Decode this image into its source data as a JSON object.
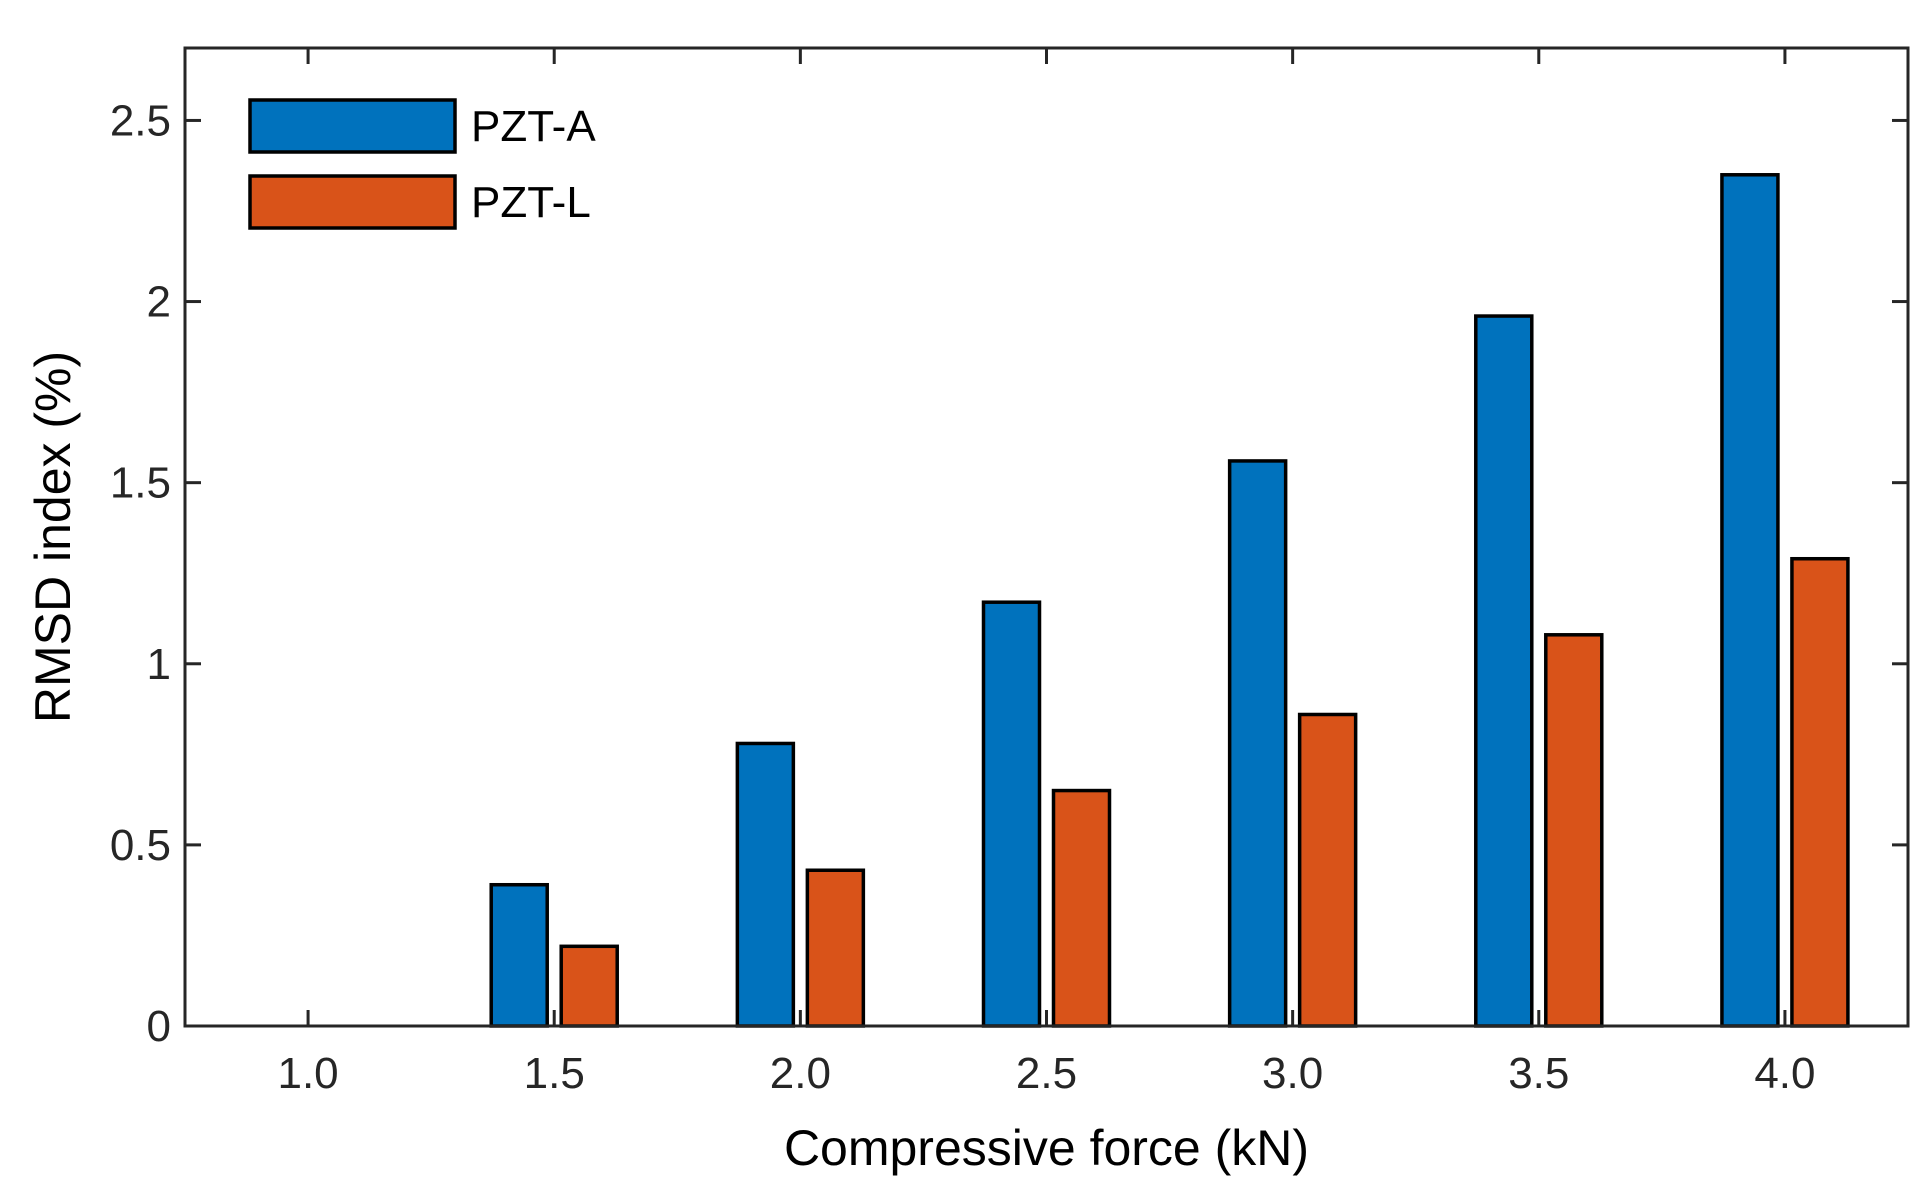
{
  "chart_data": {
    "type": "bar",
    "title": "",
    "xlabel": "Compressive force (kN)",
    "ylabel": "RMSD index (%)",
    "categories": [
      "1.0",
      "1.5",
      "2.0",
      "2.5",
      "3.0",
      "3.5",
      "4.0"
    ],
    "series": [
      {
        "name": "PZT-A",
        "color": "#0072BD",
        "values": [
          0,
          0.39,
          0.78,
          1.17,
          1.56,
          1.96,
          2.35
        ]
      },
      {
        "name": "PZT-L",
        "color": "#D95319",
        "values": [
          0,
          0.22,
          0.43,
          0.65,
          0.86,
          1.08,
          1.29
        ]
      }
    ],
    "ylim": [
      0,
      2.7
    ],
    "yticks": [
      0,
      0.5,
      1,
      1.5,
      2,
      2.5
    ],
    "ytick_labels": [
      "0",
      "0.5",
      "1",
      "1.5",
      "2",
      "2.5"
    ],
    "grid": false,
    "legend_position": "top-left"
  }
}
